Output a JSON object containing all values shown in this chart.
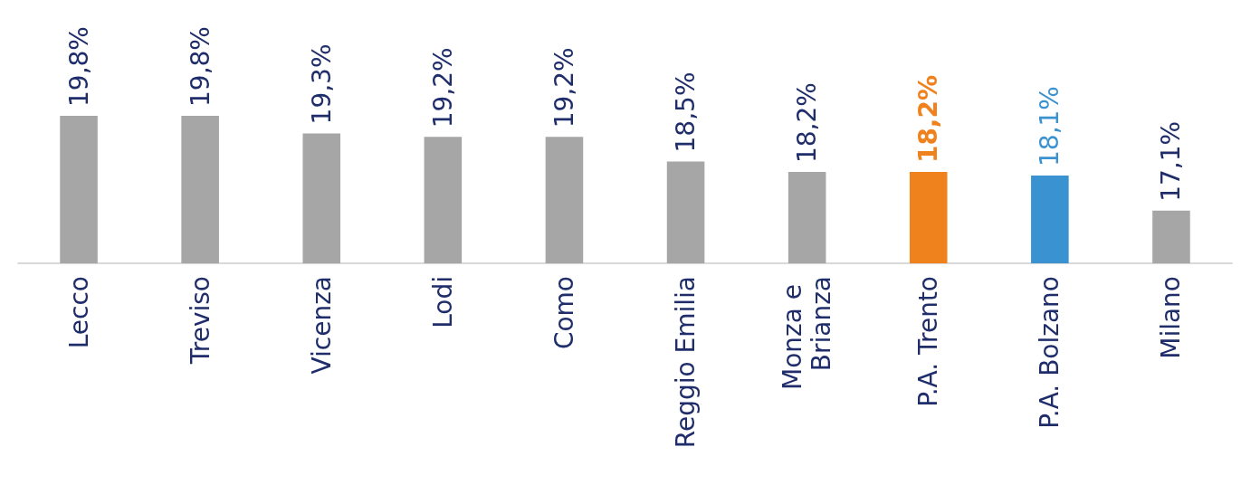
{
  "chart_data": {
    "type": "bar",
    "categories": [
      "Lecco",
      "Treviso",
      "Vicenza",
      "Lodi",
      "Como",
      "Reggio Emilia",
      "Monza e Brianza",
      "P.A. Trento",
      "P.A. Bolzano",
      "Milano"
    ],
    "values": [
      19.8,
      19.8,
      19.3,
      19.2,
      19.2,
      18.5,
      18.2,
      18.2,
      18.1,
      17.1
    ],
    "colors": [
      "#a6a6a6",
      "#a6a6a6",
      "#a6a6a6",
      "#a6a6a6",
      "#a6a6a6",
      "#a6a6a6",
      "#a6a6a6",
      "#f0821e",
      "#3a93d0",
      "#a6a6a6"
    ],
    "value_labels": [
      "19,8%",
      "19,8%",
      "19,3%",
      "19,2%",
      "19,2%",
      "18,5%",
      "18,2%",
      "18,2%",
      "18,1%",
      "17,1%"
    ],
    "ylim": [
      15.6,
      19.8
    ]
  }
}
